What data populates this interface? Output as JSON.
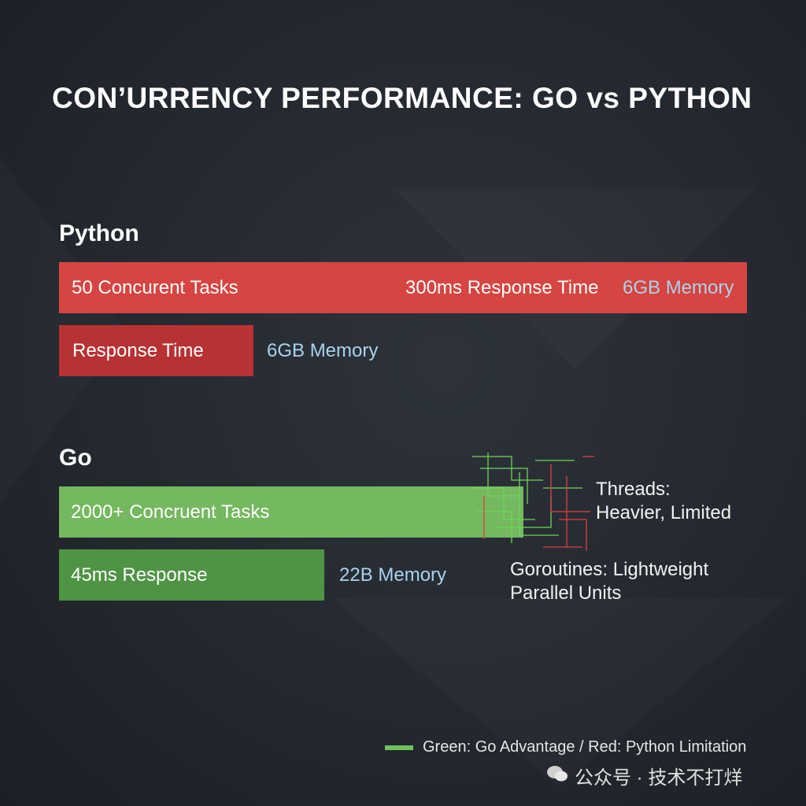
{
  "title": "CON’URRENCY PERFORMANCE: GO vs PYTHON",
  "sections": [
    {
      "heading": "Python",
      "bars": [
        {
          "labels": [
            "50 Concurent Tasks",
            "300ms Response Time",
            "6GB Memory"
          ]
        },
        {
          "labels": [
            "Response Time"
          ],
          "outside": "6GB Memory"
        }
      ]
    },
    {
      "heading": "Go",
      "bars": [
        {
          "labels": [
            "2000+ Concruent Tasks"
          ]
        },
        {
          "labels": [
            "45ms Response"
          ],
          "outside": "22B Memory"
        }
      ]
    }
  ],
  "annotations": {
    "threads": [
      "Threads:",
      "Heavier, Limited"
    ],
    "goroutines": [
      "Goroutines: Lightweight",
      "Parallel Units"
    ]
  },
  "legend": "Green: Go Advantage / Red: Python Limitation",
  "watermark": "公众号 · 技术不打烊"
}
